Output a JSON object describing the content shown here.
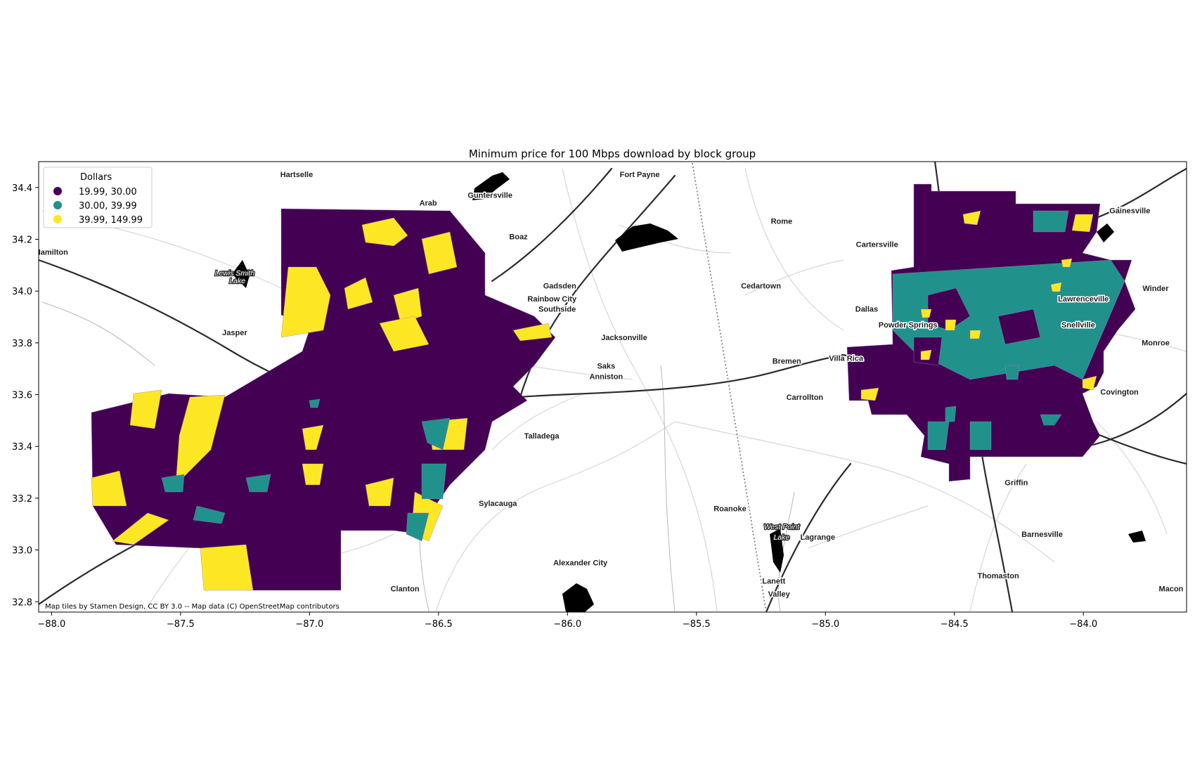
{
  "title": "Minimum price for 100 Mbps download by block group",
  "attribution": "Map tiles by Stamen Design, CC BY 3.0 -- Map data (C) OpenStreetMap contributors",
  "legend": {
    "title": "Dollars",
    "placement": "upper-left",
    "entries": [
      {
        "label": "19.99,  30.00",
        "color": "#440154"
      },
      {
        "label": "30.00,  39.99",
        "color": "#21918c"
      },
      {
        "label": "39.99, 149.99",
        "color": "#fde725"
      }
    ]
  },
  "colors": {
    "low": "#440154",
    "mid": "#21918c",
    "high": "#fde725",
    "road": "#2b2b2b",
    "minor_road": "#cfcfcf",
    "water": "#000000"
  },
  "x_axis": {
    "range": [
      -88.05,
      -83.6
    ],
    "ticks": [
      {
        "value": -88.0,
        "label": "−88.0"
      },
      {
        "value": -87.5,
        "label": "−87.5"
      },
      {
        "value": -87.0,
        "label": "−87.0"
      },
      {
        "value": -86.5,
        "label": "−86.5"
      },
      {
        "value": -86.0,
        "label": "−86.0"
      },
      {
        "value": -85.5,
        "label": "−85.5"
      },
      {
        "value": -85.0,
        "label": "−85.0"
      },
      {
        "value": -84.5,
        "label": "−84.5"
      },
      {
        "value": -84.0,
        "label": "−84.0"
      }
    ]
  },
  "y_axis": {
    "range": [
      32.76,
      34.5
    ],
    "ticks": [
      {
        "value": 32.8,
        "label": "32.8"
      },
      {
        "value": 33.0,
        "label": "33.0"
      },
      {
        "value": 33.2,
        "label": "33.2"
      },
      {
        "value": 33.4,
        "label": "33.4"
      },
      {
        "value": 33.6,
        "label": "33.6"
      },
      {
        "value": 33.8,
        "label": "33.8"
      },
      {
        "value": 34.0,
        "label": "34.0"
      },
      {
        "value": 34.2,
        "label": "34.2"
      },
      {
        "value": 34.4,
        "label": "34.4"
      }
    ]
  },
  "places": [
    {
      "name": "Hartselle",
      "lon": -87.05,
      "lat": 34.44
    },
    {
      "name": "Arab",
      "lon": -86.54,
      "lat": 34.33
    },
    {
      "name": "Guntersville",
      "lon": -86.3,
      "lat": 34.36
    },
    {
      "name": "Fort Payne",
      "lon": -85.72,
      "lat": 34.44
    },
    {
      "name": "Boaz",
      "lon": -86.19,
      "lat": 34.2
    },
    {
      "name": "Hamilton",
      "lon": -88.0,
      "lat": 34.14
    },
    {
      "name": "Jasper",
      "lon": -87.29,
      "lat": 33.83
    },
    {
      "name": "Gadsden",
      "lon": -86.03,
      "lat": 34.01
    },
    {
      "name": "Rainbow City",
      "lon": -86.06,
      "lat": 33.96
    },
    {
      "name": "Southside",
      "lon": -86.04,
      "lat": 33.92
    },
    {
      "name": "Jacksonville",
      "lon": -85.78,
      "lat": 33.81
    },
    {
      "name": "Saks",
      "lon": -85.85,
      "lat": 33.7
    },
    {
      "name": "Anniston",
      "lon": -85.85,
      "lat": 33.66
    },
    {
      "name": "Talladega",
      "lon": -86.1,
      "lat": 33.43
    },
    {
      "name": "Sylacauga",
      "lon": -86.27,
      "lat": 33.17
    },
    {
      "name": "Alexander City",
      "lon": -85.95,
      "lat": 32.94
    },
    {
      "name": "Clanton",
      "lon": -86.63,
      "lat": 32.84
    },
    {
      "name": "Rome",
      "lon": -85.17,
      "lat": 34.26
    },
    {
      "name": "Cedartown",
      "lon": -85.25,
      "lat": 34.01
    },
    {
      "name": "Cartersville",
      "lon": -84.8,
      "lat": 34.17
    },
    {
      "name": "Dallas",
      "lon": -84.84,
      "lat": 33.92
    },
    {
      "name": "Powder Springs",
      "lon": -84.68,
      "lat": 33.86
    },
    {
      "name": "Villa Rica",
      "lon": -84.92,
      "lat": 33.73
    },
    {
      "name": "Bremen",
      "lon": -85.15,
      "lat": 33.72
    },
    {
      "name": "Carrollton",
      "lon": -85.08,
      "lat": 33.58
    },
    {
      "name": "Roanoke",
      "lon": -85.37,
      "lat": 33.15
    },
    {
      "name": "Lagrange",
      "lon": -85.03,
      "lat": 33.04
    },
    {
      "name": "Lanett",
      "lon": -85.2,
      "lat": 32.87
    },
    {
      "name": "Valley",
      "lon": -85.18,
      "lat": 32.82
    },
    {
      "name": "Gainesville",
      "lon": -83.82,
      "lat": 34.3
    },
    {
      "name": "Winder",
      "lon": -83.72,
      "lat": 34.0
    },
    {
      "name": "Lawrenceville",
      "lon": -84.0,
      "lat": 33.96
    },
    {
      "name": "Snellville",
      "lon": -84.02,
      "lat": 33.86
    },
    {
      "name": "Monroe",
      "lon": -83.72,
      "lat": 33.79
    },
    {
      "name": "Covington",
      "lon": -83.86,
      "lat": 33.6
    },
    {
      "name": "Griffin",
      "lon": -84.26,
      "lat": 33.25
    },
    {
      "name": "Barnesville",
      "lon": -84.16,
      "lat": 33.05
    },
    {
      "name": "Thomaston",
      "lon": -84.33,
      "lat": 32.89
    },
    {
      "name": "Macon",
      "lon": -83.66,
      "lat": 32.84
    }
  ],
  "lakes": [
    {
      "name": "Lewis Smith",
      "lon": -87.29,
      "lat": 34.06
    },
    {
      "name": "Lake",
      "lon": -87.28,
      "lat": 34.03
    },
    {
      "name": "West Point",
      "lon": -85.17,
      "lat": 33.08
    },
    {
      "name": "Lake",
      "lon": -85.17,
      "lat": 33.04
    }
  ]
}
